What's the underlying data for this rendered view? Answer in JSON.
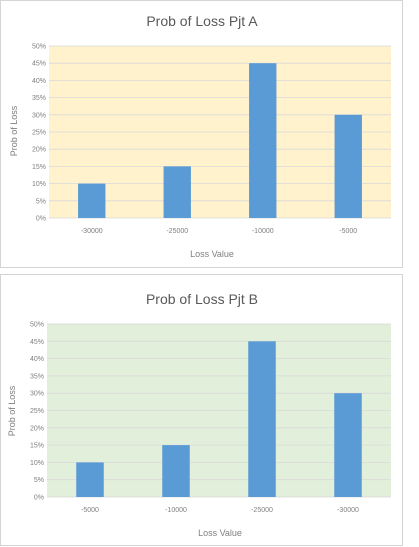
{
  "chart_data": [
    {
      "type": "bar",
      "title": "Prob of Loss Pjt A",
      "xlabel": "Loss Value",
      "ylabel": "Prob of Loss",
      "categories": [
        "-30000",
        "-25000",
        "-10000",
        "-5000"
      ],
      "values": [
        0.1,
        0.15,
        0.45,
        0.3
      ],
      "ylim": [
        0,
        0.5
      ],
      "yticks": [
        "0%",
        "5%",
        "10%",
        "15%",
        "20%",
        "25%",
        "30%",
        "35%",
        "40%",
        "45%",
        "50%"
      ],
      "grid": true,
      "plot_background": "#fff2cc",
      "bar_color": "#5b9bd5",
      "grid_color": "#d9d9d9"
    },
    {
      "type": "bar",
      "title": "Prob of Loss Pjt B",
      "xlabel": "Loss Value",
      "ylabel": "Prob of Loss",
      "categories": [
        "-5000",
        "-10000",
        "-25000",
        "-30000"
      ],
      "values": [
        0.1,
        0.15,
        0.45,
        0.3
      ],
      "ylim": [
        0,
        0.5
      ],
      "yticks": [
        "0%",
        "5%",
        "10%",
        "15%",
        "20%",
        "25%",
        "30%",
        "35%",
        "40%",
        "45%",
        "50%"
      ],
      "grid": true,
      "plot_background": "#e2efda",
      "bar_color": "#5b9bd5",
      "grid_color": "#d9d9d9"
    }
  ]
}
